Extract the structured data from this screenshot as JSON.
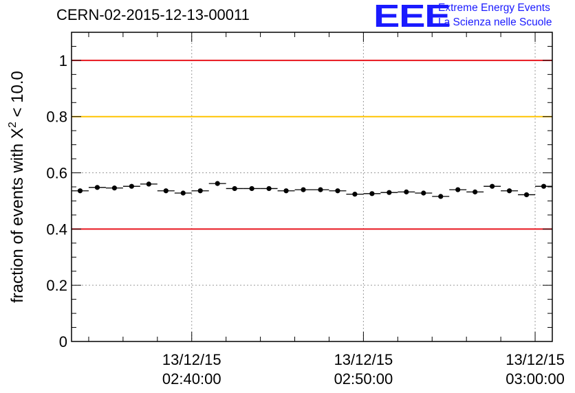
{
  "header": {
    "title": "CERN-02-2015-12-13-00011",
    "logo_text": "EEE",
    "org_line1": "Extreme Energy Events",
    "org_line2": "La Scienza nelle Scuole",
    "logo_color": "#1a1aff"
  },
  "chart_data": {
    "type": "scatter",
    "ylabel_prefix": "fraction of events with X",
    "ylabel_sup": "2",
    "ylabel_suffix": " < 10.0",
    "ylim": [
      0,
      1.1
    ],
    "yticks": [
      0,
      0.2,
      0.4,
      0.6,
      0.8,
      1
    ],
    "ytick_labels": [
      "0",
      "0.2",
      "0.4",
      "0.6",
      "0.8",
      "1"
    ],
    "xlim": [
      "02:33:00",
      "03:01:00"
    ],
    "xticks": [
      {
        "date": "13/12/15",
        "time": "02:40:00"
      },
      {
        "date": "13/12/15",
        "time": "02:50:00"
      },
      {
        "date": "13/12/15",
        "time": "03:00:00"
      }
    ],
    "grid": true,
    "reference_lines": [
      {
        "y": 1.0,
        "color": "#e8141d"
      },
      {
        "y": 0.8,
        "color": "#ffc400"
      },
      {
        "y": 0.4,
        "color": "#e8141d"
      }
    ],
    "series": [
      {
        "x": [
          "02:33:30",
          "02:34:30",
          "02:35:30",
          "02:36:30",
          "02:37:30",
          "02:38:30",
          "02:39:30",
          "02:40:30",
          "02:41:30",
          "02:42:30",
          "02:43:30",
          "02:44:30",
          "02:45:30",
          "02:46:30",
          "02:47:30",
          "02:48:30",
          "02:49:30",
          "02:50:30",
          "02:51:30",
          "02:52:30",
          "02:53:30",
          "02:54:30",
          "02:55:30",
          "02:56:30",
          "02:57:30",
          "02:58:30",
          "02:59:30",
          "03:00:30"
        ],
        "y": [
          0.536,
          0.548,
          0.546,
          0.552,
          0.56,
          0.536,
          0.528,
          0.536,
          0.562,
          0.544,
          0.544,
          0.544,
          0.536,
          0.54,
          0.54,
          0.536,
          0.524,
          0.526,
          0.53,
          0.532,
          0.528,
          0.516,
          0.54,
          0.532,
          0.552,
          0.536,
          0.522,
          0.552
        ],
        "yerr": 0.008
      }
    ]
  }
}
